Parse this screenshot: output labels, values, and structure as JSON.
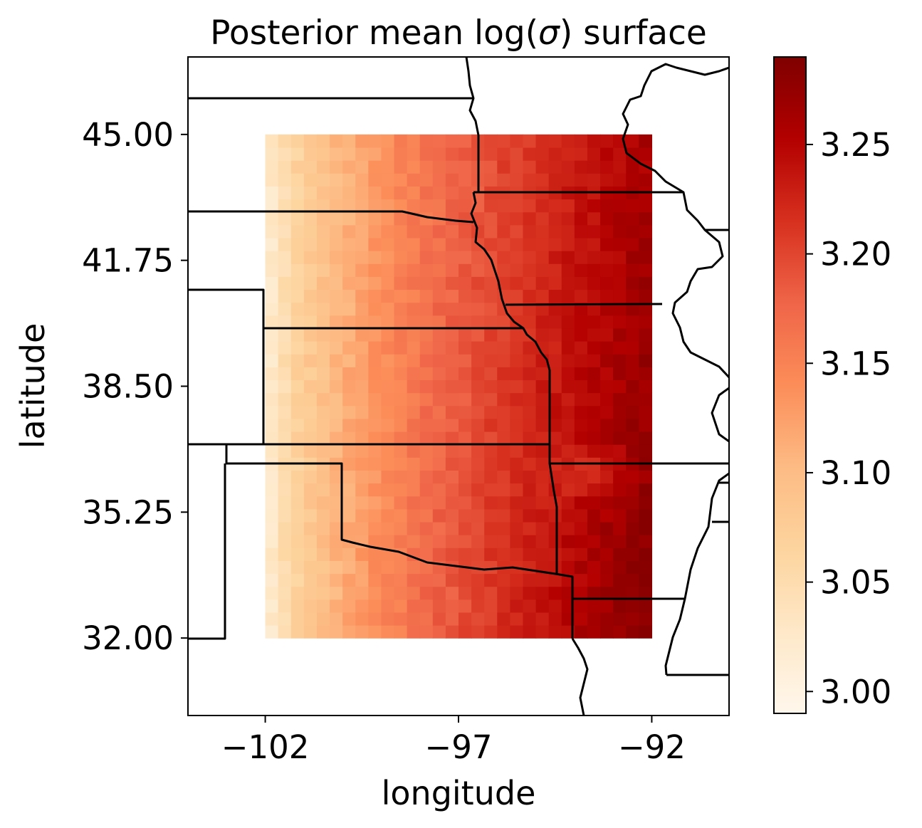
{
  "chart_data": {
    "type": "heatmap",
    "title": "Posterior mean log(σ) surface",
    "title_prefix": "Posterior mean log(",
    "title_symbol": "σ",
    "title_suffix": ") surface",
    "xlabel": "longitude",
    "ylabel": "latitude",
    "xlim": [
      -104,
      -90
    ],
    "ylim": [
      30,
      47
    ],
    "x_ticks": [
      -102,
      -97,
      -92
    ],
    "x_tick_labels": [
      "−102",
      "−97",
      "−92"
    ],
    "y_ticks": [
      32.0,
      35.25,
      38.5,
      41.75,
      45.0
    ],
    "y_tick_labels": [
      "32.00",
      "35.25",
      "38.50",
      "41.75",
      "45.00"
    ],
    "grid": false,
    "colormap": "OrRd",
    "grid_extent": {
      "lon": [
        -102,
        -92
      ],
      "lat": [
        32,
        45
      ]
    },
    "grid_resolution": {
      "cols": 30,
      "rows": 39
    },
    "colorbar": {
      "range": [
        2.99,
        3.29
      ],
      "ticks": [
        3.0,
        3.05,
        3.1,
        3.15,
        3.2,
        3.25
      ],
      "tick_labels": [
        "3.00",
        "3.05",
        "3.10",
        "3.15",
        "3.20",
        "3.25"
      ],
      "colors": [
        "#fff7ec",
        "#fee8c8",
        "#fdd49e",
        "#fdbb84",
        "#fc8d59",
        "#ef6548",
        "#d7301f",
        "#b30000",
        "#7f0000"
      ]
    },
    "value_model": {
      "note_values": "approximate posterior mean log sigma; low in the west (~3.00-3.08) rising to ~3.26-3.28 in the east and southeast",
      "west_min": 3.0,
      "east_max": 3.27
    },
    "boundary_color": "#000000"
  }
}
